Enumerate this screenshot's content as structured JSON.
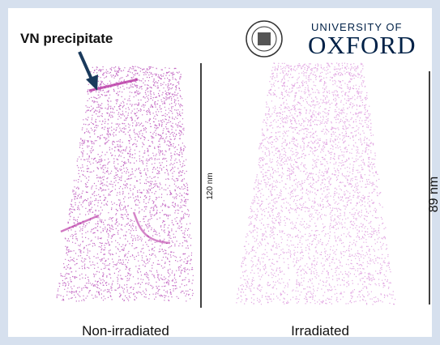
{
  "annotation": "VN precipitate",
  "logo": {
    "line1": "UNIVERSITY OF",
    "line2": "OXFORD"
  },
  "panels": [
    {
      "scale_label": "120 nm",
      "caption": "Non-irradiated"
    },
    {
      "scale_label": "89 nm",
      "caption": "Irradiated"
    }
  ]
}
